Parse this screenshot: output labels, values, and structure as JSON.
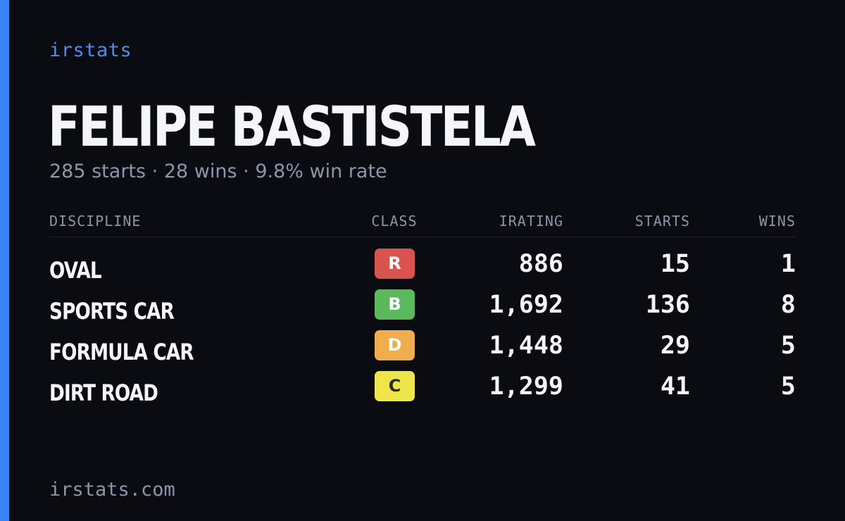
{
  "brand": "irstats",
  "player": {
    "name": "FELIPE BASTISTELA",
    "starts_text": "285 starts",
    "wins_text": "28 wins",
    "winrate_text": "9.8% win rate",
    "separator": "·"
  },
  "table": {
    "headers": {
      "discipline": "DISCIPLINE",
      "class": "CLASS",
      "irating": "IRATING",
      "starts": "STARTS",
      "wins": "WINS"
    },
    "rows": [
      {
        "discipline": "OVAL",
        "class": "R",
        "class_bg": "#d9534f",
        "class_fg": "#ffffff",
        "irating": "886",
        "starts": "15",
        "wins": "1"
      },
      {
        "discipline": "SPORTS CAR",
        "class": "B",
        "class_bg": "#5cb85c",
        "class_fg": "#ffffff",
        "irating": "1,692",
        "starts": "136",
        "wins": "8"
      },
      {
        "discipline": "FORMULA CAR",
        "class": "D",
        "class_bg": "#f0ad4e",
        "class_fg": "#ffffff",
        "irating": "1,448",
        "starts": "29",
        "wins": "5"
      },
      {
        "discipline": "DIRT ROAD",
        "class": "C",
        "class_bg": "#ede54a",
        "class_fg": "#2a2a2a",
        "irating": "1,299",
        "starts": "41",
        "wins": "5"
      }
    ]
  },
  "footer": "irstats.com",
  "colors": {
    "background": "#0a0c12",
    "accent": "#3b82f6",
    "muted_text": "#8d95a8",
    "primary_text": "#f4f6fa"
  }
}
